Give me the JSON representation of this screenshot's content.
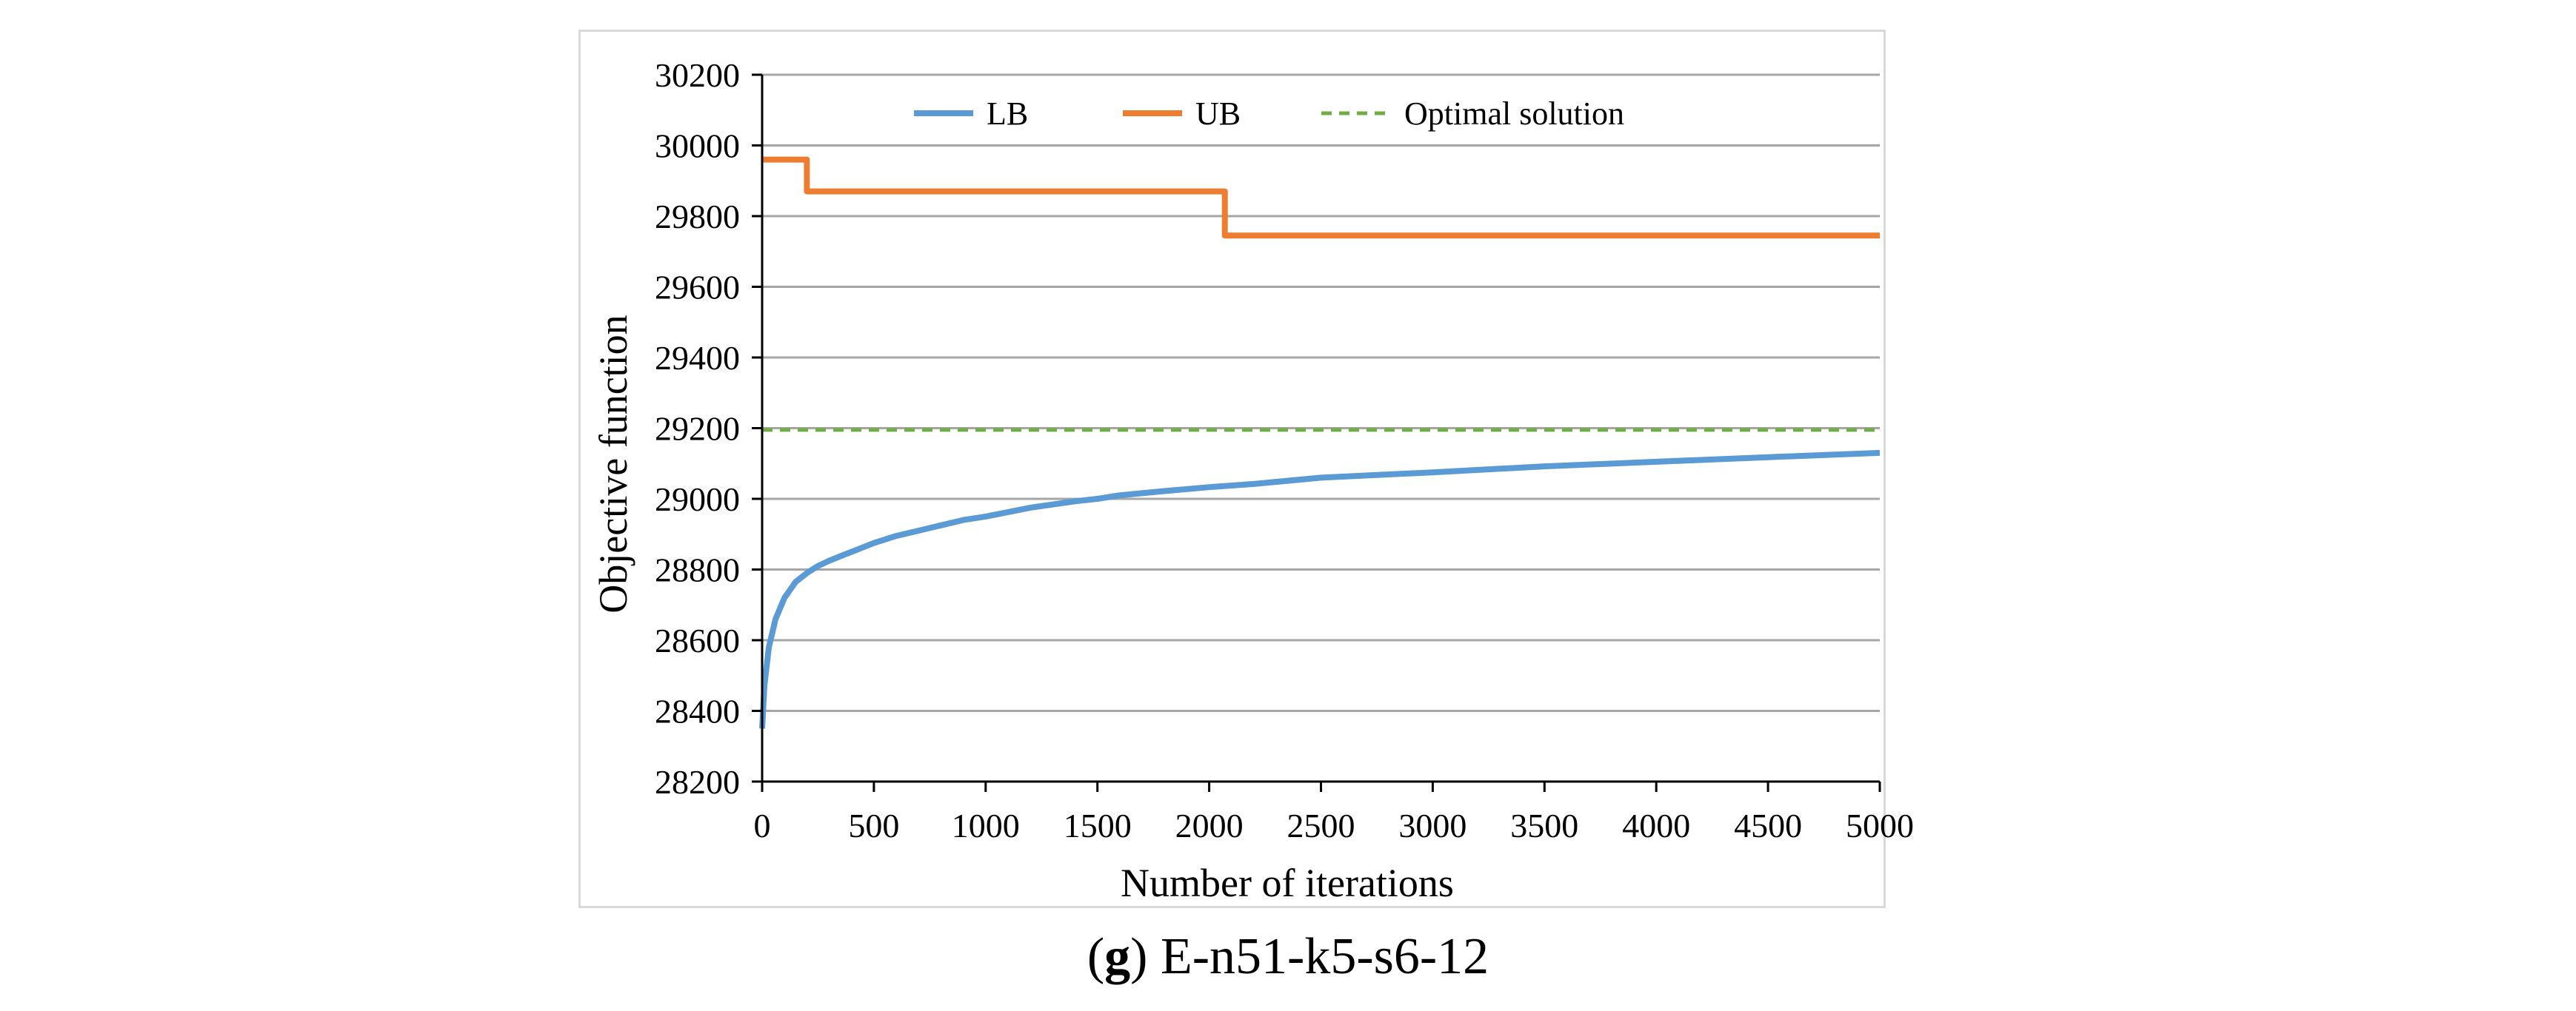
{
  "colors": {
    "lb": "#5b9bd5",
    "ub": "#ed7d31",
    "optimal": "#70ad47",
    "grid": "#a6a6a6",
    "axis": "#000000"
  },
  "caption": {
    "letter": "g",
    "text": " E-n51-k5-s6-12"
  },
  "chart_data": {
    "type": "line",
    "title": "",
    "xlabel": "Number of iterations",
    "ylabel": "Objective function",
    "xlim": [
      0,
      5000
    ],
    "ylim": [
      28200,
      30200
    ],
    "xticks": [
      0,
      500,
      1000,
      1500,
      2000,
      2500,
      3000,
      3500,
      4000,
      4500,
      5000
    ],
    "yticks": [
      28200,
      28400,
      28600,
      28800,
      29000,
      29200,
      29400,
      29600,
      29800,
      30000,
      30200
    ],
    "grid": true,
    "legend_position": "top",
    "series": [
      {
        "name": "LB",
        "style": "solid",
        "color": "#5b9bd5",
        "x": [
          0,
          10,
          30,
          60,
          100,
          150,
          200,
          250,
          300,
          400,
          500,
          600,
          700,
          800,
          900,
          1000,
          1200,
          1400,
          1500,
          1600,
          1800,
          2000,
          2200,
          2500,
          3000,
          3500,
          4000,
          4500,
          5000
        ],
        "y": [
          28350,
          28470,
          28580,
          28660,
          28720,
          28765,
          28790,
          28810,
          28825,
          28850,
          28875,
          28895,
          28910,
          28925,
          28940,
          28950,
          28975,
          28993,
          29000,
          29010,
          29022,
          29033,
          29042,
          29060,
          29075,
          29092,
          29105,
          29118,
          29130
        ]
      },
      {
        "name": "UB",
        "style": "step",
        "color": "#ed7d31",
        "x": [
          0,
          200,
          200,
          2070,
          2070,
          5000
        ],
        "y": [
          29960,
          29960,
          29870,
          29870,
          29745,
          29745
        ]
      },
      {
        "name": "Optimal solution",
        "style": "dashed",
        "color": "#70ad47",
        "x": [
          0,
          5000
        ],
        "y": [
          29195,
          29195
        ]
      }
    ]
  }
}
